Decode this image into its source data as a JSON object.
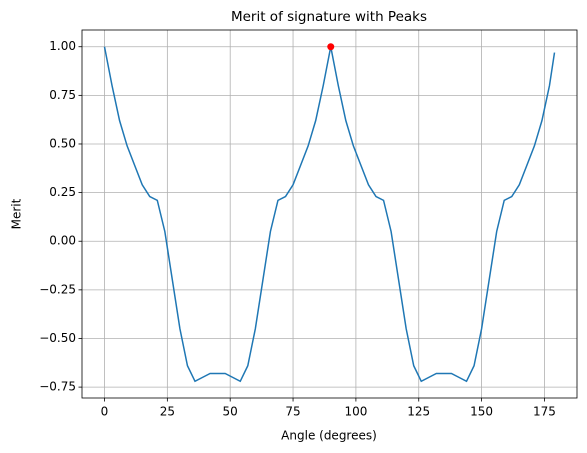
{
  "chart_data": {
    "type": "line",
    "title": "Merit of signature with Peaks",
    "xlabel": "Angle (degrees)",
    "ylabel": "Merit",
    "x": [
      0,
      3,
      6,
      9,
      12,
      15,
      18,
      21,
      24,
      27,
      30,
      33,
      36,
      39,
      42,
      45,
      48,
      51,
      54,
      57,
      60,
      63,
      66,
      69,
      72,
      75,
      78,
      81,
      84,
      87,
      90,
      93,
      96,
      99,
      102,
      105,
      108,
      111,
      114,
      117,
      120,
      123,
      126,
      129,
      132,
      135,
      138,
      141,
      144,
      147,
      150,
      153,
      156,
      159,
      162,
      165,
      168,
      171,
      174,
      177,
      179
    ],
    "series": [
      {
        "type": "line",
        "color": "#1f77b4",
        "values": [
          1.0,
          0.8,
          0.62,
          0.49,
          0.39,
          0.29,
          0.23,
          0.21,
          0.05,
          -0.2,
          -0.45,
          -0.64,
          -0.72,
          -0.7,
          -0.68,
          -0.68,
          -0.68,
          -0.7,
          -0.72,
          -0.64,
          -0.45,
          -0.2,
          0.05,
          0.21,
          0.23,
          0.29,
          0.39,
          0.49,
          0.62,
          0.8,
          1.0,
          0.8,
          0.62,
          0.49,
          0.39,
          0.29,
          0.23,
          0.21,
          0.05,
          -0.2,
          -0.45,
          -0.64,
          -0.72,
          -0.7,
          -0.68,
          -0.68,
          -0.68,
          -0.7,
          -0.72,
          -0.64,
          -0.45,
          -0.2,
          0.05,
          0.21,
          0.23,
          0.29,
          0.39,
          0.49,
          0.62,
          0.8,
          0.97
        ]
      },
      {
        "type": "scatter",
        "color": "#ff0000",
        "x": [
          90
        ],
        "values": [
          1.0
        ]
      }
    ],
    "xlim": [
      -8.95,
      187.95
    ],
    "ylim": [
      -0.806,
      1.086
    ],
    "xticks": [
      0,
      25,
      50,
      75,
      100,
      125,
      150,
      175
    ],
    "yticks": [
      {
        "value": 1.0,
        "label": "1.00"
      },
      {
        "value": 0.75,
        "label": "0.75"
      },
      {
        "value": 0.5,
        "label": "0.50"
      },
      {
        "value": 0.25,
        "label": "0.25"
      },
      {
        "value": 0.0,
        "label": "0.00"
      },
      {
        "value": -0.25,
        "label": "−0.25"
      },
      {
        "value": -0.5,
        "label": "−0.50"
      },
      {
        "value": -0.75,
        "label": "−0.75"
      }
    ],
    "grid": true
  }
}
